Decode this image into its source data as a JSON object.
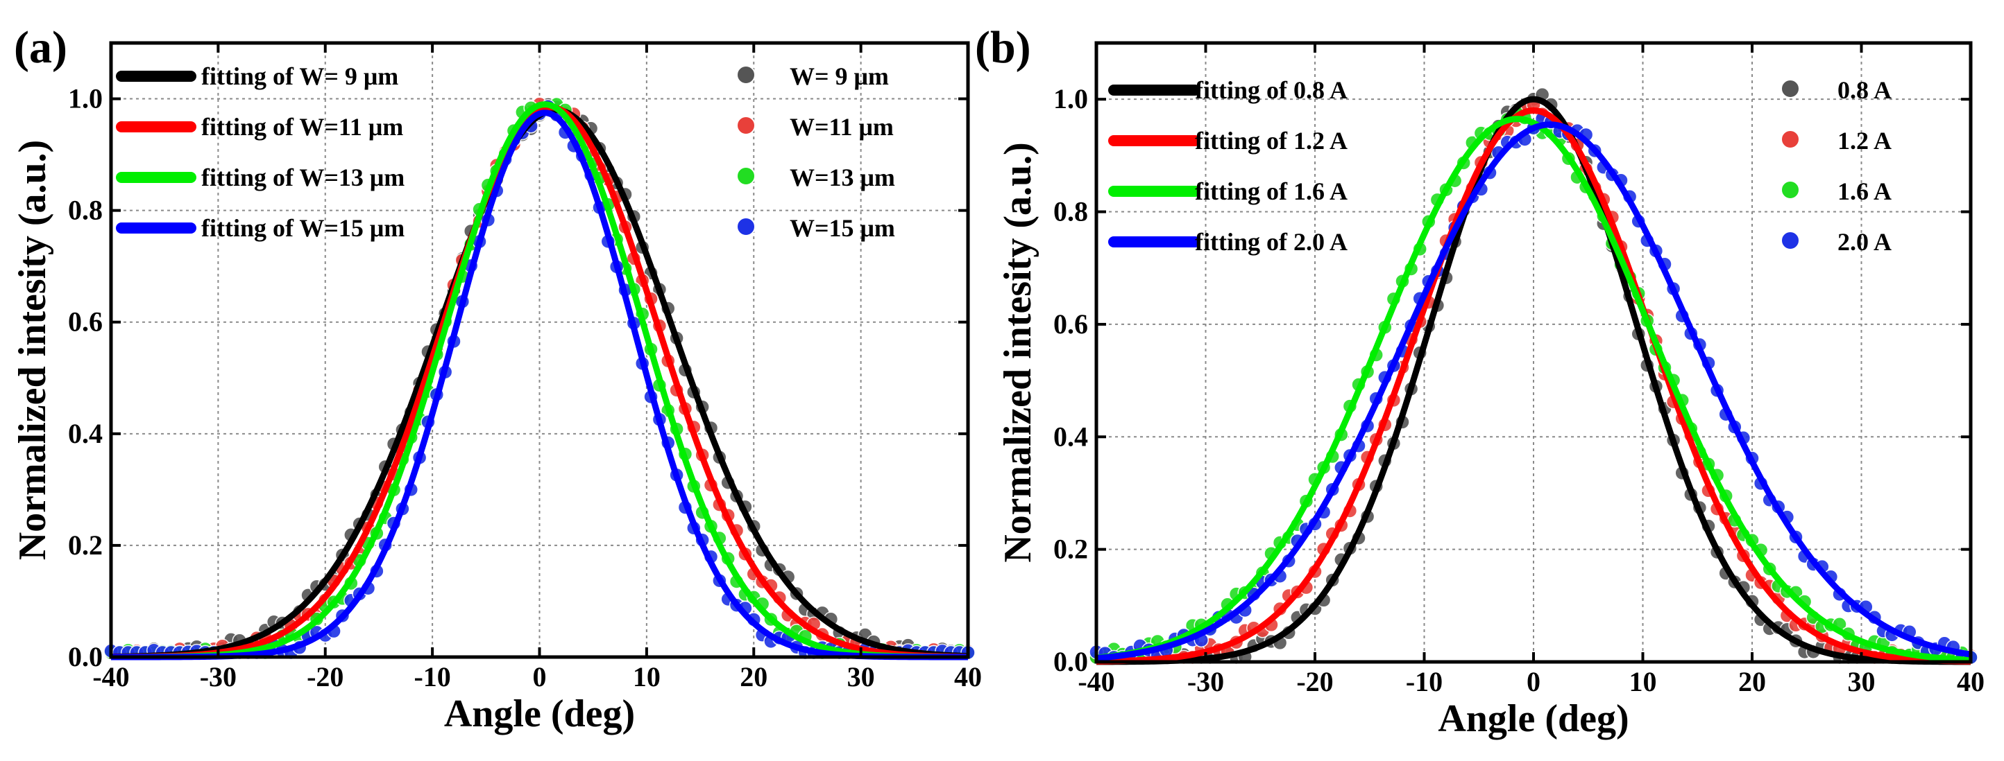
{
  "chart_data": [
    {
      "panel_label": "(a)",
      "type": "scatter+line",
      "xlabel": "Angle (deg)",
      "ylabel": "Normalized intesity (a.u.)",
      "xlim": [
        -40,
        40
      ],
      "ylim": [
        0,
        1.1
      ],
      "xticks": [
        -40,
        -30,
        -20,
        -10,
        0,
        10,
        20,
        30,
        40
      ],
      "xtick_labels": [
        "-40",
        "-30",
        "-20",
        "-10",
        "0",
        "10",
        "20",
        "30",
        "40"
      ],
      "yticks": [
        0,
        0.2,
        0.4,
        0.6,
        0.8,
        1.0
      ],
      "ytick_labels": [
        "0.0",
        "0.2",
        "0.4",
        "0.6",
        "0.8",
        "1.0"
      ],
      "grid": true,
      "series": [
        {
          "line_name": "fitting of W= 9 μm",
          "marker_name": "W= 9 μm",
          "color": "#000000",
          "marker_color": "#555555",
          "center": 1.5,
          "fwhm": 25.5,
          "peak": 0.98
        },
        {
          "line_name": "fitting of W=11 μm",
          "marker_name": "W=11 μm",
          "color": "#ff0000",
          "marker_color": "#e8403a",
          "center": 1.0,
          "fwhm": 23.5,
          "peak": 0.985
        },
        {
          "line_name": "fitting of W=13 μm",
          "marker_name": "W=13 μm",
          "color": "#00ee00",
          "marker_color": "#22dd22",
          "center": 0.5,
          "fwhm": 21.5,
          "peak": 0.99
        },
        {
          "line_name": "fitting of W=15 μm",
          "marker_name": "W=15 μm",
          "color": "#0000ff",
          "marker_color": "#1e32e6",
          "center": 0.5,
          "fwhm": 19.5,
          "peak": 0.975
        }
      ]
    },
    {
      "panel_label": "(b)",
      "type": "scatter+line",
      "xlabel": "Angle (deg)",
      "ylabel": "Normalized intesity (a.u.)",
      "xlim": [
        -40,
        40
      ],
      "ylim": [
        0,
        1.1
      ],
      "xticks": [
        -40,
        -30,
        -20,
        -10,
        0,
        10,
        20,
        30,
        40
      ],
      "xtick_labels": [
        "-40",
        "-30",
        "-20",
        "-10",
        "0",
        "10",
        "20",
        "30",
        "40"
      ],
      "yticks": [
        0,
        0.2,
        0.4,
        0.6,
        0.8,
        1.0
      ],
      "ytick_labels": [
        "0.0",
        "0.2",
        "0.4",
        "0.6",
        "0.8",
        "1.0"
      ],
      "grid": true,
      "series": [
        {
          "line_name": "fitting of  0.8 A",
          "marker_name": "0.8 A",
          "color": "#000000",
          "marker_color": "#555555",
          "center": 0.0,
          "fwhm": 22.0,
          "peak": 1.0
        },
        {
          "line_name": "fitting of  1.2 A",
          "marker_name": "1.2 A",
          "color": "#ff0000",
          "marker_color": "#e8403a",
          "center": 0.0,
          "fwhm": 25.0,
          "peak": 0.98
        },
        {
          "line_name": "fitting of  1.6 A",
          "marker_name": "1.6 A",
          "color": "#00ee00",
          "marker_color": "#22dd22",
          "center": -1.5,
          "fwhm": 29.0,
          "peak": 0.965
        },
        {
          "line_name": "fitting of  2.0 A",
          "marker_name": "2.0 A",
          "color": "#0000ff",
          "marker_color": "#1e32e6",
          "center": 1.5,
          "fwhm": 31.0,
          "peak": 0.955
        }
      ]
    }
  ]
}
